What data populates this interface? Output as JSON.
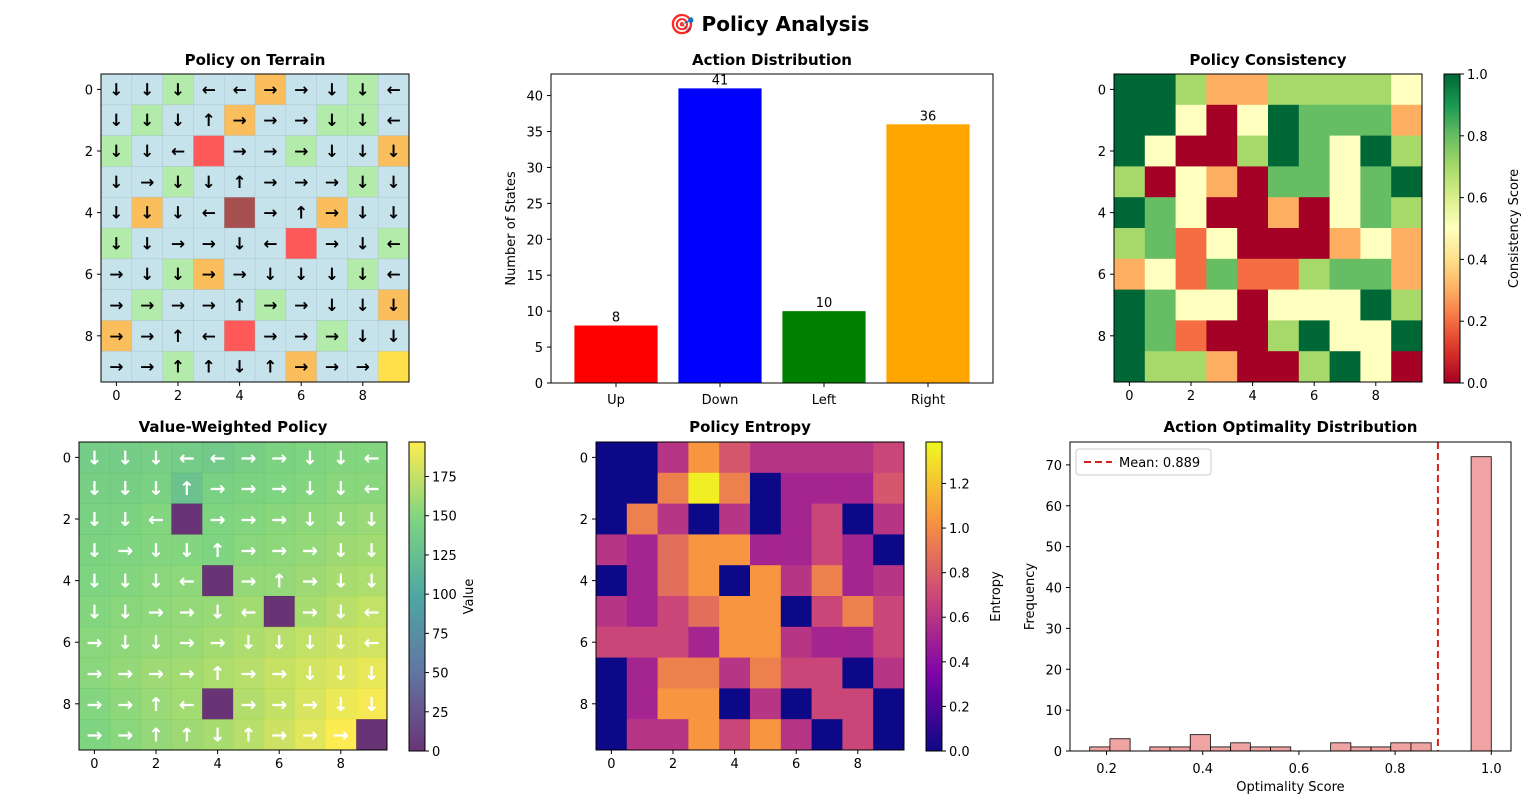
{
  "figure": {
    "title": "🎯 Policy Analysis"
  },
  "chart_data": [
    {
      "type": "heatmap",
      "title": "Policy on Terrain",
      "xticks": [
        0,
        2,
        4,
        6,
        8
      ],
      "yticks": [
        0,
        2,
        4,
        6,
        8
      ],
      "arrows": [
        "↓↓↓←←→→↓↓←",
        "↓↓↓↑→→→↓↓←",
        "↓↓←R→→→↓↓↓",
        "↓→↓↓↑→→→↓↓",
        "↓↓↓←B→↑→↓↓",
        "↓↓→→↓←R→↓←",
        "→↓↓→→↓↓↓↓←",
        "→→→→↑→→↓↓↓",
        "→→↑←R→→→↓↓",
        "→→↑↑↓↑→→→G"
      ],
      "terrain": [
        "WWGWWOWWGW",
        "WGWWOWWGGW",
        "GWWRWWGWWO",
        "WWGWWWWWGW",
        "WOWWBWWOWW",
        "GWWWWWRWWG",
        "WWGOWWWWGW",
        "WGWWWGWWWO",
        "OWWWRWWGWW",
        "WWGWWWOWWY"
      ],
      "terrain_colors": {
        "W": "#c6e3ec",
        "G": "#b3ebaa",
        "O": "#fbbe5c",
        "R": "#fe5858",
        "B": "#a6514f",
        "Y": "#ffdf4a"
      }
    },
    {
      "type": "bar",
      "title": "Action Distribution",
      "categories": [
        "Up",
        "Down",
        "Left",
        "Right"
      ],
      "values": [
        8,
        41,
        10,
        36
      ],
      "colors": [
        "#ff0000",
        "#0000ff",
        "#008000",
        "#ffa500"
      ],
      "ylabel": "Number of States",
      "ylim": [
        0,
        43
      ],
      "yticks": [
        0,
        5,
        10,
        15,
        20,
        25,
        30,
        35,
        40
      ]
    },
    {
      "type": "heatmap",
      "title": "Policy Consistency",
      "colorbar_label": "Consistency Score",
      "vmin": 0,
      "vmax": 1,
      "cbar_ticks": [
        "0.0",
        "0.2",
        "0.4",
        "0.6",
        "0.8",
        "1.0"
      ],
      "xticks": [
        0,
        2,
        4,
        6,
        8
      ],
      "yticks": [
        0,
        2,
        4,
        6,
        8
      ],
      "values": [
        [
          1,
          1,
          0.7,
          0.3,
          0.3,
          0.7,
          0.7,
          0.7,
          0.7,
          0.5
        ],
        [
          1,
          1,
          0.5,
          0,
          0.5,
          1,
          0.8,
          0.8,
          0.8,
          0.3
        ],
        [
          1,
          0.5,
          0,
          0,
          0.7,
          1,
          0.8,
          0.5,
          1,
          0.7
        ],
        [
          0.7,
          0,
          0.5,
          0.3,
          0,
          0.8,
          0.8,
          0.5,
          0.8,
          1
        ],
        [
          1,
          0.8,
          0.5,
          0,
          0,
          0.3,
          0,
          0.5,
          0.8,
          0.7
        ],
        [
          0.7,
          0.8,
          0.2,
          0.5,
          0,
          0,
          0,
          0.3,
          0.5,
          0.3
        ],
        [
          0.3,
          0.5,
          0.2,
          0.8,
          0.2,
          0.2,
          0.7,
          0.8,
          0.8,
          0.3
        ],
        [
          1,
          0.8,
          0.5,
          0.5,
          0,
          0.5,
          0.5,
          0.5,
          1,
          0.7
        ],
        [
          1,
          0.8,
          0.2,
          0,
          0,
          0.7,
          1,
          0.5,
          0.5,
          1
        ],
        [
          1,
          0.7,
          0.7,
          0.3,
          0,
          0,
          0.7,
          1,
          0.5,
          0
        ]
      ]
    },
    {
      "type": "heatmap",
      "title": "Value-Weighted Policy",
      "colorbar_label": "Value",
      "vmin": 0,
      "vmax": 197,
      "cbar_ticks": [
        "0",
        "25",
        "50",
        "75",
        "100",
        "125",
        "150",
        "175"
      ],
      "xticks": [
        0,
        2,
        4,
        6,
        8
      ],
      "yticks": [
        0,
        2,
        4,
        6,
        8
      ],
      "arrows": [
        "↓↓↓←←→→↓↓←",
        "↓↓↓↑→→→↓↓←",
        "↓↓← →→→↓↓↓",
        "↓→↓↓↑→→→↓↓",
        "↓↓↓← →↑→↓↓",
        "↓↓→→↓← →↓←",
        "→↓↓→→↓↓↓↓←",
        "→→→→↑→→↓↓↓",
        "→→↑← →→→↓↓",
        "→→↑↑↓↑→→→ "
      ],
      "values": [
        [
          140,
          140,
          142,
          138,
          136,
          142,
          146,
          148,
          150,
          150
        ],
        [
          142,
          142,
          144,
          128,
          144,
          146,
          148,
          150,
          152,
          152
        ],
        [
          144,
          146,
          150,
          0,
          148,
          150,
          152,
          154,
          156,
          158
        ],
        [
          146,
          148,
          150,
          150,
          148,
          152,
          154,
          156,
          160,
          162
        ],
        [
          148,
          150,
          152,
          154,
          0,
          156,
          156,
          160,
          164,
          166
        ],
        [
          150,
          152,
          154,
          156,
          158,
          162,
          0,
          164,
          170,
          174
        ],
        [
          152,
          154,
          156,
          158,
          162,
          166,
          170,
          174,
          178,
          180
        ],
        [
          152,
          156,
          160,
          162,
          166,
          170,
          176,
          180,
          184,
          188
        ],
        [
          150,
          154,
          158,
          162,
          0,
          168,
          174,
          182,
          190,
          194
        ],
        [
          148,
          152,
          156,
          160,
          164,
          170,
          178,
          186,
          197,
          0
        ]
      ]
    },
    {
      "type": "heatmap",
      "title": "Policy Entropy",
      "colorbar_label": "Entropy",
      "vmin": 0,
      "vmax": 1.386,
      "cbar_ticks": [
        "0.0",
        "0.2",
        "0.4",
        "0.6",
        "0.8",
        "1.0",
        "1.2"
      ],
      "xticks": [
        0,
        2,
        4,
        6,
        8
      ],
      "yticks": [
        0,
        2,
        4,
        6,
        8
      ],
      "values": [
        [
          0,
          0,
          0.6,
          1.04,
          0.76,
          0.6,
          0.6,
          0.6,
          0.6,
          0.69
        ],
        [
          0,
          0,
          0.95,
          1.35,
          0.95,
          0,
          0.52,
          0.52,
          0.52,
          0.76
        ],
        [
          0,
          0.95,
          0.6,
          0,
          0.6,
          0,
          0.52,
          0.69,
          0,
          0.6
        ],
        [
          0.6,
          0.52,
          0.87,
          1.04,
          1.04,
          0.52,
          0.52,
          0.69,
          0.52,
          0
        ],
        [
          0,
          0.52,
          0.87,
          1.04,
          0,
          1.04,
          0.6,
          0.95,
          0.52,
          0.6
        ],
        [
          0.6,
          0.52,
          0.69,
          0.87,
          1.04,
          1.04,
          0,
          0.69,
          0.95,
          0.69
        ],
        [
          0.69,
          0.69,
          0.69,
          0.52,
          1.04,
          1.04,
          0.6,
          0.52,
          0.52,
          0.69
        ],
        [
          0,
          0.52,
          0.95,
          0.95,
          0.6,
          0.95,
          0.69,
          0.69,
          0,
          0.6
        ],
        [
          0,
          0.52,
          1.04,
          1.04,
          0,
          0.6,
          0,
          0.69,
          0.69,
          0
        ],
        [
          0,
          0.6,
          0.6,
          1.04,
          0.69,
          1.04,
          0.6,
          0,
          0.69,
          0
        ]
      ]
    },
    {
      "type": "bar",
      "title": "Action Optimality Distribution",
      "xlabel": "Optimality Score",
      "ylabel": "Frequency",
      "bin_edges": [
        0.165,
        0.207,
        0.249,
        0.29,
        0.332,
        0.374,
        0.416,
        0.458,
        0.499,
        0.541,
        0.583,
        0.625,
        0.666,
        0.708,
        0.75,
        0.791,
        0.833,
        0.875,
        0.916,
        0.958,
        1.0
      ],
      "counts": [
        1,
        3,
        0,
        1,
        1,
        4,
        1,
        2,
        1,
        1,
        0,
        0,
        2,
        1,
        1,
        2,
        2,
        0,
        0,
        72
      ],
      "mean": 0.889,
      "mean_label": "Mean: 0.889",
      "xlim": [
        0.124,
        1.041
      ],
      "ylim": [
        0,
        75.6
      ],
      "xticks": [
        "0.2",
        "0.4",
        "0.6",
        "0.8",
        "1.0"
      ],
      "yticks": [
        "0",
        "10",
        "20",
        "30",
        "40",
        "50",
        "60",
        "70"
      ],
      "bar_color": "#f0a3a3",
      "mean_color": "#d62020"
    }
  ]
}
